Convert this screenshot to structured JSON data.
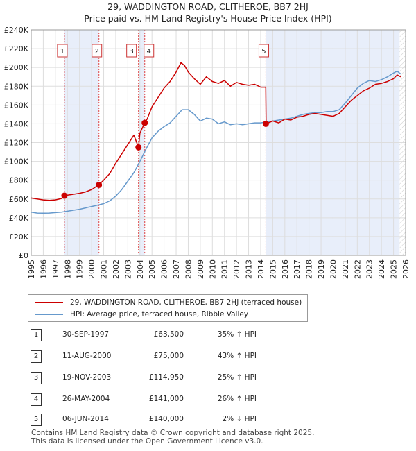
{
  "title": "29, WADDINGTON ROAD, CLITHEROE, BB7 2HJ",
  "subtitle": "Price paid vs. HM Land Registry's House Price Index (HPI)",
  "legend": [
    {
      "label": "29, WADDINGTON ROAD, CLITHEROE, BB7 2HJ (terraced house)",
      "color": "#cc0000"
    },
    {
      "label": "HPI: Average price, terraced house, Ribble Valley",
      "color": "#6699cc"
    }
  ],
  "sales": [
    {
      "n": "1",
      "date": "30-SEP-1997",
      "price": "£63,500",
      "hpi": "35% ↑ HPI"
    },
    {
      "n": "2",
      "date": "11-AUG-2000",
      "price": "£75,000",
      "hpi": "43% ↑ HPI"
    },
    {
      "n": "3",
      "date": "19-NOV-2003",
      "price": "£114,950",
      "hpi": "25% ↑ HPI"
    },
    {
      "n": "4",
      "date": "26-MAY-2004",
      "price": "£141,000",
      "hpi": "26% ↑ HPI"
    },
    {
      "n": "5",
      "date": "06-JUN-2014",
      "price": "£140,000",
      "hpi": "2% ↓ HPI"
    }
  ],
  "footer": {
    "line1": "Contains HM Land Registry data © Crown copyright and database right 2025.",
    "line2": "This data is licensed under the Open Government Licence v3.0."
  },
  "chart_data": {
    "type": "line",
    "title": "29, WADDINGTON ROAD, CLITHEROE, BB7 2HJ",
    "xlabel": "",
    "ylabel": "",
    "xlim": [
      1995,
      2026
    ],
    "ylim": [
      0,
      240000
    ],
    "grid": true,
    "legend_position": "below",
    "ytick_labels": [
      "£0",
      "£20K",
      "£40K",
      "£60K",
      "£80K",
      "£100K",
      "£120K",
      "£140K",
      "£160K",
      "£180K",
      "£200K",
      "£220K",
      "£240K"
    ],
    "ytick_values": [
      0,
      20000,
      40000,
      60000,
      80000,
      100000,
      120000,
      140000,
      160000,
      180000,
      200000,
      220000,
      240000
    ],
    "xtick_labels": [
      "1995",
      "1996",
      "1997",
      "1998",
      "1999",
      "2000",
      "2001",
      "2002",
      "2003",
      "2004",
      "2005",
      "2006",
      "2007",
      "2008",
      "2009",
      "2010",
      "2011",
      "2012",
      "2013",
      "2014",
      "2015",
      "2016",
      "2017",
      "2018",
      "2019",
      "2020",
      "2021",
      "2022",
      "2023",
      "2024",
      "2025",
      "2026"
    ],
    "xtick_values": [
      1995,
      1996,
      1997,
      1998,
      1999,
      2000,
      2001,
      2002,
      2003,
      2004,
      2005,
      2006,
      2007,
      2008,
      2009,
      2010,
      2011,
      2012,
      2013,
      2014,
      2015,
      2016,
      2017,
      2018,
      2019,
      2020,
      2021,
      2022,
      2023,
      2024,
      2025,
      2026
    ],
    "series": [
      {
        "name": "29, WADDINGTON ROAD, CLITHEROE, BB7 2HJ (terraced house)",
        "color": "#cc0000",
        "x": [
          1995.0,
          1995.5,
          1996.0,
          1996.5,
          1997.0,
          1997.5,
          1997.75,
          1998.0,
          1998.5,
          1999.0,
          1999.5,
          2000.0,
          2000.6,
          2001.0,
          2001.5,
          2002.0,
          2002.5,
          2003.0,
          2003.5,
          2003.88,
          2004.0,
          2004.4,
          2004.6,
          2005.0,
          2005.5,
          2006.0,
          2006.5,
          2007.0,
          2007.4,
          2007.7,
          2008.0,
          2008.5,
          2009.0,
          2009.5,
          2010.0,
          2010.5,
          2011.0,
          2011.5,
          2012.0,
          2012.5,
          2013.0,
          2013.5,
          2014.0,
          2014.42,
          2014.45,
          2015.0,
          2015.5,
          2016.0,
          2016.5,
          2017.0,
          2017.5,
          2018.0,
          2018.5,
          2019.0,
          2019.5,
          2020.0,
          2020.5,
          2021.0,
          2021.5,
          2022.0,
          2022.5,
          2023.0,
          2023.5,
          2024.0,
          2024.5,
          2025.0,
          2025.3,
          2025.6
        ],
        "values": [
          61000,
          60000,
          59000,
          58500,
          59000,
          60500,
          63500,
          64000,
          65000,
          66000,
          67500,
          70000,
          75000,
          80000,
          87000,
          98000,
          108000,
          118000,
          128000,
          114950,
          130000,
          141000,
          145000,
          158000,
          168000,
          178000,
          185000,
          195000,
          205000,
          202000,
          195000,
          188000,
          182000,
          190000,
          185000,
          183000,
          186000,
          180000,
          184000,
          182000,
          181000,
          182000,
          179000,
          179000,
          140000,
          143000,
          141000,
          145000,
          144000,
          147000,
          148000,
          150000,
          151000,
          150000,
          149000,
          148000,
          151000,
          158000,
          165000,
          170000,
          175000,
          178000,
          182000,
          183000,
          185000,
          188000,
          192000,
          190000
        ]
      },
      {
        "name": "HPI: Average price, terraced house, Ribble Valley",
        "color": "#6699cc",
        "x": [
          1995.0,
          1995.5,
          1996.0,
          1996.5,
          1997.0,
          1997.5,
          1998.0,
          1998.5,
          1999.0,
          1999.5,
          2000.0,
          2000.5,
          2001.0,
          2001.5,
          2002.0,
          2002.5,
          2003.0,
          2003.5,
          2004.0,
          2004.5,
          2005.0,
          2005.5,
          2006.0,
          2006.5,
          2007.0,
          2007.5,
          2008.0,
          2008.5,
          2009.0,
          2009.5,
          2010.0,
          2010.5,
          2011.0,
          2011.5,
          2012.0,
          2012.5,
          2013.0,
          2013.5,
          2014.0,
          2014.5,
          2015.0,
          2015.5,
          2016.0,
          2016.5,
          2017.0,
          2017.5,
          2018.0,
          2018.5,
          2019.0,
          2019.5,
          2020.0,
          2020.5,
          2021.0,
          2021.5,
          2022.0,
          2022.5,
          2023.0,
          2023.5,
          2024.0,
          2024.5,
          2025.0,
          2025.3,
          2025.6
        ],
        "values": [
          46000,
          45000,
          44800,
          45000,
          45500,
          46000,
          47000,
          48000,
          49000,
          50500,
          52000,
          53500,
          55000,
          58000,
          63000,
          70000,
          79000,
          88000,
          100000,
          113000,
          125000,
          132000,
          137000,
          141000,
          148000,
          155000,
          155000,
          150000,
          143000,
          146000,
          145000,
          140000,
          142000,
          139000,
          140000,
          139000,
          140000,
          141000,
          141000,
          142000,
          143000,
          144000,
          145000,
          146000,
          148000,
          150000,
          151000,
          152000,
          152000,
          153000,
          153000,
          155000,
          162000,
          170000,
          178000,
          183000,
          186000,
          185000,
          187000,
          190000,
          194000,
          196000,
          193000
        ]
      }
    ],
    "sales": [
      {
        "label": "1",
        "x": 1997.75,
        "y": 63500
      },
      {
        "label": "2",
        "x": 2000.61,
        "y": 75000
      },
      {
        "label": "3",
        "x": 2003.88,
        "y": 114950
      },
      {
        "label": "4",
        "x": 2004.4,
        "y": 141000
      },
      {
        "label": "5",
        "x": 2014.43,
        "y": 140000
      }
    ],
    "shaded_spans": [
      [
        1997.75,
        2000.61
      ],
      [
        2003.88,
        2004.4
      ],
      [
        2014.43,
        2025.5
      ]
    ]
  }
}
